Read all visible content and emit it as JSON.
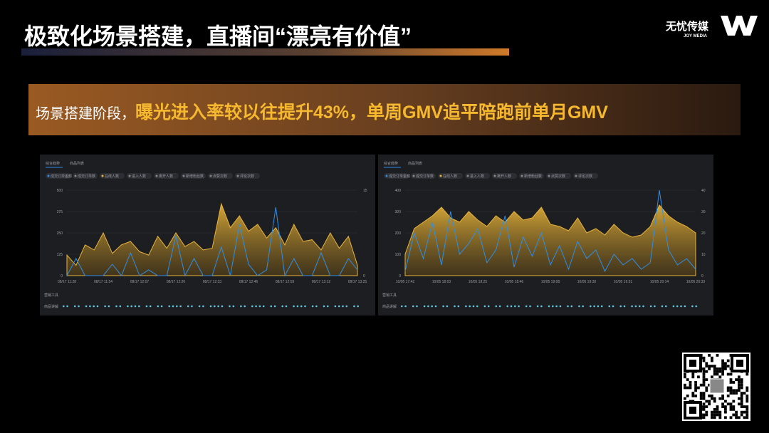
{
  "header": {
    "title": "极致化场景搭建，直播间“漂亮有价值”",
    "brand": "无忧传媒",
    "brand_sub": "JOY MEDIA"
  },
  "banner": {
    "lead": "场景搭建阶段，",
    "highlight": "曝光进入率较以往提升43%，单周GMV追平陪跑前单月GMV"
  },
  "chart_data": [
    {
      "type": "area",
      "tabs": [
        "综合趋势",
        "商品列表"
      ],
      "rows": [
        "营销工具",
        "商品讲解"
      ],
      "other_metrics": [
        "成交订单数",
        "进入人数",
        "离开人数",
        "新增粉丝数",
        "点赞次数",
        "评论次数"
      ],
      "categories": [
        "08/17 11:28",
        null,
        null,
        null,
        "08/17 11:54",
        null,
        null,
        null,
        "08/17 12:07",
        null,
        null,
        null,
        "08/17 12:20",
        null,
        null,
        null,
        "08/17 12:33",
        null,
        null,
        null,
        "08/17 12:46",
        null,
        null,
        null,
        "08/17 12:59",
        null,
        null,
        null,
        "08/17 13:12",
        null,
        null,
        null,
        "08/17 13:25"
      ],
      "ylim": [
        0,
        500
      ],
      "yticks": [
        0,
        125,
        250,
        375,
        500
      ],
      "y2lim": [
        0,
        15
      ],
      "y2ticks": [
        0,
        15
      ],
      "grid": true,
      "series": [
        {
          "name": "在线人数",
          "color": "#e8b43a",
          "values": [
            120,
            60,
            180,
            150,
            250,
            130,
            180,
            200,
            140,
            120,
            230,
            160,
            250,
            170,
            200,
            150,
            160,
            420,
            280,
            350,
            260,
            300,
            220,
            280,
            180,
            300,
            200,
            210,
            150,
            250,
            160,
            230,
            60
          ]
        },
        {
          "name": "成交订单金额",
          "color": "#2e8fe8",
          "axis": "y2",
          "values": [
            0,
            3,
            0,
            0,
            0,
            2,
            0,
            4,
            0,
            1,
            0,
            0,
            7,
            0,
            3,
            0,
            0,
            5,
            0,
            9,
            2,
            0,
            1,
            12,
            0,
            3,
            0,
            0,
            4,
            0,
            0,
            3,
            1
          ]
        }
      ]
    },
    {
      "type": "area",
      "tabs": [
        "综合趋势",
        "商品列表"
      ],
      "rows": [
        "营销工具",
        "商品讲解"
      ],
      "other_metrics": [
        "成交订单数",
        "进入人数",
        "离开人数",
        "新增粉丝数",
        "点赞次数",
        "评论次数"
      ],
      "categories": [
        "10/05 17:42",
        null,
        null,
        null,
        "10/05 18:03",
        null,
        null,
        null,
        "10/05 18:25",
        null,
        null,
        null,
        "10/05 18:46",
        null,
        null,
        null,
        "10/05 19:08",
        null,
        null,
        null,
        "10/05 19:30",
        null,
        null,
        null,
        "10/05 19:51",
        null,
        null,
        null,
        "10/05 20:14",
        null,
        null,
        null,
        "10/05 20:33"
      ],
      "ylim": [
        0,
        400
      ],
      "yticks": [
        0,
        100,
        200,
        300,
        400
      ],
      "y2lim": [
        0,
        40
      ],
      "y2ticks": [
        0,
        10,
        20,
        30,
        40
      ],
      "grid": true,
      "series": [
        {
          "name": "在线人数",
          "color": "#e8b43a",
          "values": [
            100,
            220,
            250,
            280,
            320,
            270,
            250,
            300,
            260,
            230,
            280,
            250,
            300,
            260,
            270,
            320,
            240,
            230,
            210,
            270,
            200,
            220,
            190,
            240,
            200,
            180,
            190,
            230,
            330,
            280,
            250,
            230,
            200
          ]
        },
        {
          "name": "成交订单金额",
          "color": "#2e8fe8",
          "axis": "y2",
          "values": [
            2,
            20,
            8,
            25,
            5,
            30,
            10,
            15,
            22,
            6,
            12,
            28,
            4,
            18,
            9,
            20,
            5,
            14,
            3,
            16,
            8,
            12,
            2,
            10,
            5,
            8,
            3,
            6,
            40,
            12,
            5,
            8,
            3
          ]
        }
      ]
    }
  ]
}
